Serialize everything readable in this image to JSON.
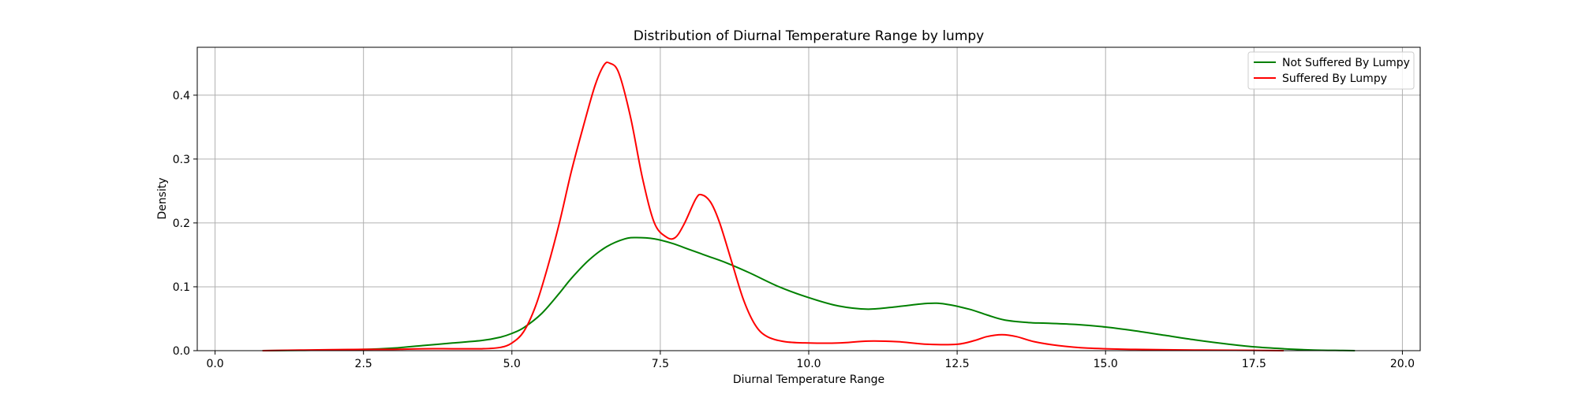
{
  "chart_data": {
    "type": "line",
    "title": "Distribution of Diurnal Temperature Range by lumpy",
    "xlabel": "Diurnal Temperature Range",
    "ylabel": "Density",
    "xlim": [
      -0.3,
      20.3
    ],
    "ylim": [
      0,
      0.475
    ],
    "xticks": [
      0.0,
      2.5,
      5.0,
      7.5,
      10.0,
      12.5,
      15.0,
      17.5,
      20.0
    ],
    "xtick_labels": [
      "0.0",
      "2.5",
      "5.0",
      "7.5",
      "10.0",
      "12.5",
      "15.0",
      "17.5",
      "20.0"
    ],
    "yticks": [
      0.0,
      0.1,
      0.2,
      0.3,
      0.4
    ],
    "ytick_labels": [
      "0.0",
      "0.1",
      "0.2",
      "0.3",
      "0.4"
    ],
    "grid": true,
    "legend_position": "top-right",
    "series": [
      {
        "name": "Not Suffered By Lumpy",
        "color": "#008000",
        "x": [
          0.8,
          1.5,
          2.5,
          3.0,
          3.5,
          4.0,
          4.5,
          4.8,
          5.0,
          5.2,
          5.5,
          5.8,
          6.0,
          6.3,
          6.6,
          6.9,
          7.1,
          7.4,
          7.7,
          8.0,
          8.3,
          8.6,
          9.0,
          9.5,
          10.0,
          10.5,
          11.0,
          11.5,
          12.0,
          12.3,
          12.7,
          13.0,
          13.3,
          13.7,
          14.0,
          14.5,
          15.0,
          15.5,
          16.0,
          16.5,
          17.0,
          17.5,
          18.0,
          18.5,
          19.0,
          19.2
        ],
        "y": [
          0.0,
          0.0005,
          0.002,
          0.004,
          0.008,
          0.012,
          0.016,
          0.021,
          0.027,
          0.036,
          0.058,
          0.09,
          0.113,
          0.142,
          0.163,
          0.175,
          0.177,
          0.175,
          0.168,
          0.158,
          0.148,
          0.138,
          0.122,
          0.1,
          0.083,
          0.07,
          0.065,
          0.069,
          0.074,
          0.073,
          0.065,
          0.056,
          0.048,
          0.044,
          0.043,
          0.041,
          0.037,
          0.031,
          0.024,
          0.017,
          0.011,
          0.006,
          0.003,
          0.001,
          0.0003,
          0.0
        ]
      },
      {
        "name": "Suffered By Lumpy",
        "color": "#ff0000",
        "x": [
          0.8,
          1.5,
          2.5,
          3.0,
          3.5,
          4.0,
          4.5,
          4.8,
          5.0,
          5.2,
          5.4,
          5.6,
          5.8,
          6.0,
          6.2,
          6.4,
          6.55,
          6.65,
          6.8,
          7.0,
          7.2,
          7.4,
          7.6,
          7.75,
          7.9,
          8.1,
          8.2,
          8.35,
          8.5,
          8.7,
          8.9,
          9.1,
          9.3,
          9.6,
          10.0,
          10.5,
          11.0,
          11.5,
          12.0,
          12.5,
          12.8,
          13.0,
          13.25,
          13.5,
          13.8,
          14.2,
          14.7,
          15.5,
          16.5,
          17.5,
          18.0
        ],
        "y": [
          0.0,
          0.001,
          0.002,
          0.002,
          0.003,
          0.003,
          0.003,
          0.005,
          0.012,
          0.03,
          0.07,
          0.13,
          0.2,
          0.28,
          0.35,
          0.415,
          0.447,
          0.45,
          0.435,
          0.365,
          0.27,
          0.2,
          0.178,
          0.177,
          0.198,
          0.238,
          0.244,
          0.232,
          0.2,
          0.14,
          0.08,
          0.04,
          0.022,
          0.014,
          0.012,
          0.012,
          0.015,
          0.014,
          0.01,
          0.01,
          0.016,
          0.022,
          0.025,
          0.022,
          0.014,
          0.008,
          0.004,
          0.002,
          0.001,
          0.0005,
          0.0
        ]
      }
    ]
  }
}
